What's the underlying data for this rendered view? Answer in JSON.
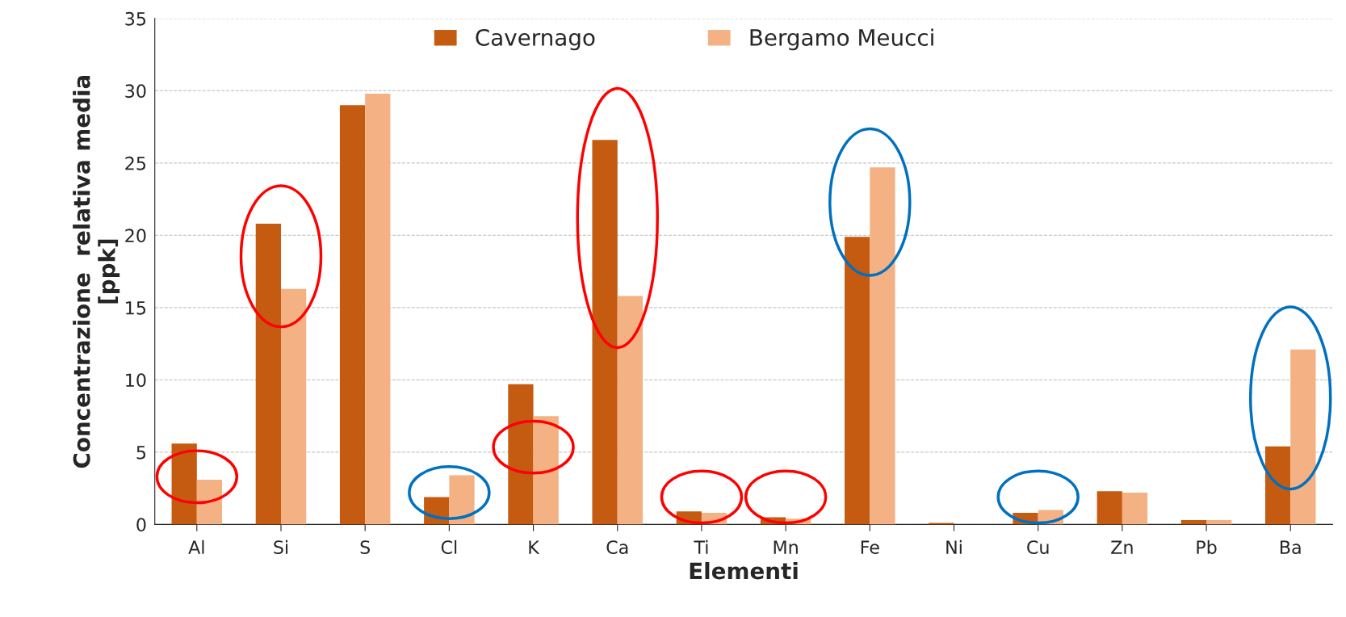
{
  "chart_data": {
    "type": "bar",
    "xlabel": "Elementi",
    "ylabel": "Concentrazione  relativa media\n[ppk]",
    "categories": [
      "Al",
      "Si",
      "S",
      "Cl",
      "K",
      "Ca",
      "Ti",
      "Mn",
      "Fe",
      "Ni",
      "Cu",
      "Zn",
      "Pb",
      "Ba"
    ],
    "series": [
      {
        "name": "Cavernago",
        "color": "#c55a11",
        "values": [
          5.6,
          20.8,
          29.0,
          1.9,
          9.7,
          26.6,
          0.9,
          0.5,
          19.9,
          0.1,
          0.8,
          2.3,
          0.3,
          5.4
        ]
      },
      {
        "name": "Bergamo Meucci",
        "color": "#f4b183",
        "values": [
          3.1,
          16.3,
          29.8,
          3.4,
          7.5,
          15.8,
          0.8,
          0.4,
          24.7,
          null,
          1.0,
          2.2,
          0.3,
          12.1
        ]
      }
    ],
    "ylim": [
      0,
      35
    ],
    "yticks": [
      0,
      5,
      10,
      15,
      20,
      25,
      30,
      35
    ],
    "grid": "y",
    "legend": "top"
  }
}
